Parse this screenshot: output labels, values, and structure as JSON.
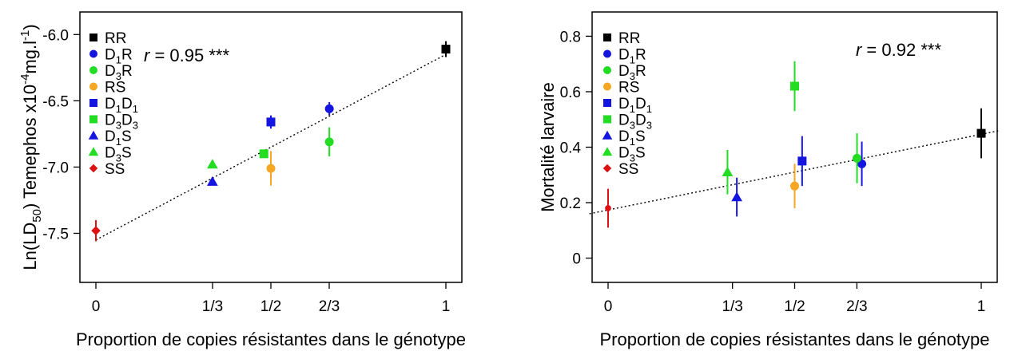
{
  "chart_data": [
    {
      "type": "scatter",
      "ylabel_parts": [
        "Ln(LD",
        "50",
        ") Temephos  x10",
        "-4",
        "mg.l",
        "-1",
        ")"
      ],
      "xlabel": "Proportion de copies résistantes dans le génotype",
      "xlim": [
        0,
        1
      ],
      "ylim": [
        -7.75,
        -5.95
      ],
      "xticks": [
        {
          "value": 0,
          "label": "0"
        },
        {
          "value": 0.3333,
          "label": "1/3"
        },
        {
          "value": 0.5,
          "label": "1/2"
        },
        {
          "value": 0.6667,
          "label": "2/3"
        },
        {
          "value": 1,
          "label": "1"
        }
      ],
      "yticks": [
        {
          "value": -6.0,
          "label": "-6.0"
        },
        {
          "value": -6.5,
          "label": "-6.5"
        },
        {
          "value": -7.0,
          "label": "-7.0"
        },
        {
          "value": -7.5,
          "label": "-7.5"
        }
      ],
      "annotation": {
        "italic": "r",
        "rest": " = 0.95 ***",
        "position": "top-left"
      },
      "regression": {
        "x0": 0,
        "y0": -7.55,
        "x1": 1,
        "y1": -6.15,
        "style": "dotted"
      },
      "legend": {
        "position": "top-left"
      },
      "series": [
        {
          "name": [
            "RR",
            "",
            ""
          ],
          "marker": "square",
          "color": "#000000",
          "x": 1.0,
          "y": -6.11,
          "err": 0.06
        },
        {
          "name": [
            "D",
            "1",
            "R"
          ],
          "marker": "circle",
          "color": "#1515e0",
          "x": 0.667,
          "y": -6.56,
          "err": 0.05
        },
        {
          "name": [
            "D",
            "3",
            "R"
          ],
          "marker": "circle",
          "color": "#22dd22",
          "x": 0.667,
          "y": -6.81,
          "err": 0.11
        },
        {
          "name": [
            "RS",
            "",
            ""
          ],
          "marker": "circle",
          "color": "#f5a623",
          "x": 0.5,
          "y": -7.01,
          "err": 0.13
        },
        {
          "name": [
            "D",
            "1",
            "D",
            "1"
          ],
          "marker": "square",
          "color": "#1515e0",
          "x": 0.5,
          "y": -6.66,
          "err": 0.05
        },
        {
          "name": [
            "D",
            "3",
            "D",
            "3"
          ],
          "marker": "square",
          "color": "#22dd22",
          "x": 0.48,
          "y": -6.9,
          "err": 0.02
        },
        {
          "name": [
            "D",
            "1",
            "S"
          ],
          "marker": "triangle",
          "color": "#1515e0",
          "x": 0.333,
          "y": -7.11,
          "err": 0.0
        },
        {
          "name": [
            "D",
            "3",
            "S"
          ],
          "marker": "triangle",
          "color": "#22dd22",
          "x": 0.333,
          "y": -6.98,
          "err": 0.0
        },
        {
          "name": [
            "SS",
            "",
            ""
          ],
          "marker": "diamond",
          "color": "#dd1111",
          "x": 0.0,
          "y": -7.48,
          "err": 0.08
        }
      ]
    },
    {
      "type": "scatter",
      "ylabel_parts": [
        "Mortalité larvaire"
      ],
      "xlabel": "Proportion de copies résistantes dans le génotype",
      "xlim": [
        0,
        1
      ],
      "ylim": [
        -0.03,
        0.83
      ],
      "xticks": [
        {
          "value": 0,
          "label": "0"
        },
        {
          "value": 0.3333,
          "label": "1/3"
        },
        {
          "value": 0.5,
          "label": "1/2"
        },
        {
          "value": 0.6667,
          "label": "2/3"
        },
        {
          "value": 1,
          "label": "1"
        }
      ],
      "yticks": [
        {
          "value": 0,
          "label": "0"
        },
        {
          "value": 0.2,
          "label": "0.2"
        },
        {
          "value": 0.4,
          "label": "0.4"
        },
        {
          "value": 0.6,
          "label": "0.6"
        },
        {
          "value": 0.8,
          "label": "0.8"
        }
      ],
      "annotation": {
        "italic": "r",
        "rest": " = 0.92 ***",
        "position": "top-right"
      },
      "regression": {
        "x0": -0.05,
        "y0": 0.16,
        "x1": 1.05,
        "y1": 0.46,
        "style": "dotted"
      },
      "legend": {
        "position": "top-left"
      },
      "series": [
        {
          "name": [
            "RR",
            "",
            ""
          ],
          "marker": "square",
          "color": "#000000",
          "x": 1.0,
          "y": 0.45,
          "err": 0.09
        },
        {
          "name": [
            "D",
            "1",
            "R"
          ],
          "marker": "circle",
          "color": "#1515e0",
          "x": 0.68,
          "y": 0.34,
          "err": 0.08
        },
        {
          "name": [
            "D",
            "3",
            "R"
          ],
          "marker": "circle",
          "color": "#22dd22",
          "x": 0.667,
          "y": 0.36,
          "err": 0.09
        },
        {
          "name": [
            "RS",
            "",
            ""
          ],
          "marker": "circle",
          "color": "#f5a623",
          "x": 0.5,
          "y": 0.26,
          "err": 0.08
        },
        {
          "name": [
            "D",
            "1",
            "D",
            "1"
          ],
          "marker": "square",
          "color": "#1515e0",
          "x": 0.52,
          "y": 0.35,
          "err": 0.09
        },
        {
          "name": [
            "D",
            "3",
            "D",
            "3"
          ],
          "marker": "square",
          "color": "#22dd22",
          "x": 0.5,
          "y": 0.62,
          "err": 0.09
        },
        {
          "name": [
            "D",
            "1",
            "S"
          ],
          "marker": "triangle",
          "color": "#1515e0",
          "x": 0.345,
          "y": 0.22,
          "err": 0.07
        },
        {
          "name": [
            "D",
            "3",
            "S"
          ],
          "marker": "triangle",
          "color": "#22dd22",
          "x": 0.32,
          "y": 0.31,
          "err": 0.08
        },
        {
          "name": [
            "SS",
            "",
            ""
          ],
          "marker": "circle-small",
          "color": "#dd1111",
          "x": 0.0,
          "y": 0.18,
          "err": 0.07
        }
      ]
    }
  ]
}
